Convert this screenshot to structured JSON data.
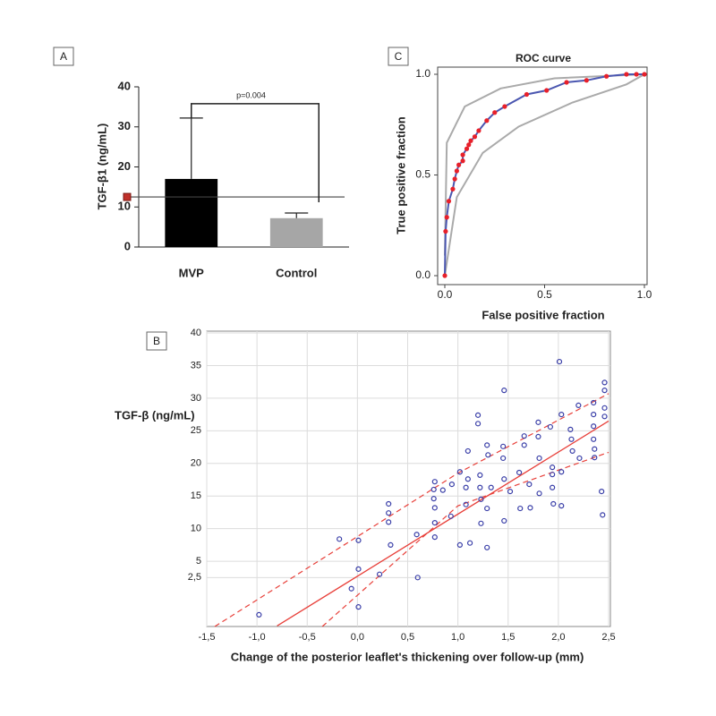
{
  "chart_data": [
    {
      "type": "bar",
      "panel": "A",
      "ylabel": "TGF-β1 (ng/mL)",
      "categories": [
        "MVP",
        "Control"
      ],
      "values": [
        17.0,
        7.2
      ],
      "errors": [
        15.2,
        1.3
      ],
      "colors": [
        "#000000",
        "#a6a6a6"
      ],
      "ylim": [
        0,
        40
      ],
      "yticks": [
        0,
        10,
        20,
        30,
        40
      ],
      "hline": 12.5,
      "annotation": "p=0.004"
    },
    {
      "type": "scatter",
      "panel": "B",
      "ylabel": "TGF-β (ng/mL)",
      "xlabel": "Change of the posterior leaflet's thickening over follow-up (mm)",
      "x": [
        -0.98,
        -0.18,
        0.01,
        0.01,
        -0.06,
        0.01,
        0.22,
        0.31,
        0.31,
        0.31,
        0.33,
        0.59,
        0.6,
        0.76,
        0.76,
        0.77,
        0.77,
        0.77,
        0.77,
        0.85,
        0.93,
        0.94,
        1.02,
        1.02,
        1.08,
        1.08,
        1.1,
        1.1,
        1.12,
        1.2,
        1.2,
        1.22,
        1.22,
        1.23,
        1.23,
        1.29,
        1.3,
        1.29,
        1.29,
        1.33,
        1.46,
        1.45,
        1.45,
        1.46,
        1.46,
        1.52,
        1.61,
        1.62,
        1.66,
        1.66,
        1.71,
        1.72,
        1.8,
        1.8,
        1.81,
        1.81,
        1.92,
        1.94,
        1.94,
        1.94,
        1.95,
        2.01,
        2.03,
        2.03,
        2.03,
        2.12,
        2.13,
        2.14,
        2.21,
        2.2,
        2.35,
        2.35,
        2.35,
        2.35,
        2.36,
        2.36,
        2.46,
        2.46,
        2.46,
        2.46,
        2.43,
        2.44
      ],
      "y": [
        -3.2,
        8.4,
        8.2,
        3.8,
        0.8,
        -2.0,
        3.0,
        13.8,
        12.4,
        11.0,
        7.5,
        9.1,
        2.5,
        16.0,
        14.6,
        17.2,
        13.2,
        10.9,
        8.7,
        15.9,
        11.9,
        16.8,
        18.7,
        7.5,
        13.7,
        16.3,
        17.6,
        21.9,
        7.8,
        26.1,
        27.4,
        18.2,
        16.3,
        14.5,
        10.8,
        22.8,
        21.3,
        13.1,
        7.1,
        16.3,
        31.2,
        22.6,
        20.8,
        17.6,
        11.2,
        15.7,
        18.6,
        13.1,
        24.2,
        22.8,
        16.8,
        13.2,
        26.3,
        24.1,
        20.8,
        15.4,
        25.6,
        19.4,
        18.3,
        16.3,
        13.8,
        35.6,
        27.5,
        18.7,
        13.5,
        25.2,
        23.7,
        21.9,
        20.8,
        28.9,
        29.3,
        27.5,
        25.7,
        23.7,
        22.2,
        20.9,
        32.4,
        31.2,
        28.5,
        27.2,
        15.7,
        12.1
      ],
      "color": "#3a3fa8",
      "fit": {
        "x": [
          -0.8,
          2.5
        ],
        "y": [
          -4.9,
          26.5
        ]
      },
      "ci_upper": {
        "x": [
          -1.42,
          1.0,
          2.5
        ],
        "y": [
          -5,
          18.5,
          30.7
        ]
      },
      "ci_lower": {
        "x": [
          -0.35,
          1.0,
          2.5
        ],
        "y": [
          -5,
          13.5,
          21.7
        ]
      },
      "fit_color": "#e8403a",
      "xlim": [
        -1.5,
        2.5
      ],
      "xticks": [
        {
          "value": -1.5,
          "label": "-1,5"
        },
        {
          "value": -1.0,
          "label": "-1,0"
        },
        {
          "value": -0.5,
          "label": "-0,5"
        },
        {
          "value": 0,
          "label": "0,0"
        },
        {
          "value": 0.5,
          "label": "0,5"
        },
        {
          "value": 1.0,
          "label": "1,0"
        },
        {
          "value": 1.5,
          "label": "1,5"
        },
        {
          "value": 2.0,
          "label": "2,0"
        },
        {
          "value": 2.5,
          "label": "2,5"
        }
      ],
      "ylim": [
        -5,
        40
      ],
      "yticks": [
        {
          "value": 2.5,
          "label": "2,5"
        },
        5,
        10,
        15,
        20,
        25,
        30,
        35,
        40
      ],
      "grid": true
    },
    {
      "type": "line",
      "panel": "C",
      "title": "ROC curve",
      "xlabel": "False positive fraction",
      "ylabel": "True positive fraction",
      "curve": {
        "x": [
          0,
          0.004,
          0.01,
          0.02,
          0.04,
          0.05,
          0.06,
          0.07,
          0.09,
          0.09,
          0.11,
          0.12,
          0.13,
          0.15,
          0.17,
          0.21,
          0.25,
          0.3,
          0.41,
          0.51,
          0.61,
          0.71,
          0.81,
          0.91,
          0.96,
          1.0
        ],
        "y": [
          0,
          0.22,
          0.29,
          0.37,
          0.43,
          0.48,
          0.52,
          0.55,
          0.57,
          0.6,
          0.63,
          0.65,
          0.67,
          0.69,
          0.72,
          0.77,
          0.81,
          0.84,
          0.9,
          0.92,
          0.96,
          0.97,
          0.99,
          1.0,
          1.0,
          1.0
        ],
        "color": "#4a56b0",
        "marker_color": "#e8202a"
      },
      "ci_upper": {
        "x": [
          0,
          0.01,
          0.1,
          0.28,
          0.55,
          1.0
        ],
        "y": [
          0.1,
          0.66,
          0.84,
          0.93,
          0.98,
          1.0
        ]
      },
      "ci_lower": {
        "x": [
          0,
          0.06,
          0.19,
          0.37,
          0.64,
          0.91,
          1.0
        ],
        "y": [
          0,
          0.39,
          0.61,
          0.74,
          0.86,
          0.95,
          1.0
        ]
      },
      "ci_color": "#aaaaaa",
      "xlim": [
        0,
        1
      ],
      "ylim": [
        0,
        1
      ],
      "xticks": [
        {
          "value": 0,
          "label": "0.0"
        },
        0.5,
        {
          "value": 1,
          "label": "1.0"
        }
      ],
      "yticks": [
        {
          "value": 0,
          "label": "0.0"
        },
        0.5,
        {
          "value": 1,
          "label": "1.0"
        }
      ]
    }
  ]
}
